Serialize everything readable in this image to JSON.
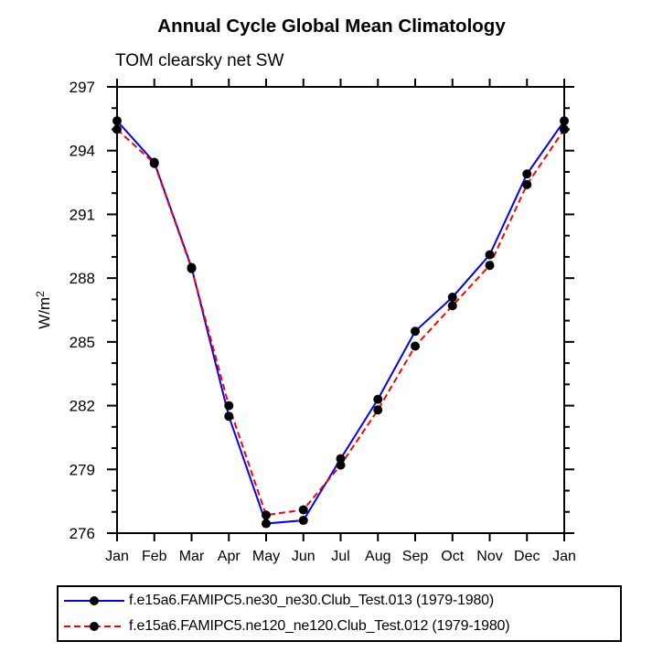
{
  "chart_data": {
    "type": "line",
    "title": "Annual Cycle Global Mean Climatology",
    "subtitle": "TOM clearsky net SW",
    "ylabel": "W/m²",
    "ylabel_base": "W/m",
    "ylabel_exponent": "2",
    "categories": [
      "Jan",
      "Feb",
      "Mar",
      "Apr",
      "May",
      "Jun",
      "Jul",
      "Aug",
      "Sep",
      "Oct",
      "Nov",
      "Dec",
      "Jan"
    ],
    "ylim": [
      276,
      297
    ],
    "ytick_interval_major": 3,
    "ytick_interval_minor": 1,
    "ytick_labels": [
      "276",
      "279",
      "282",
      "285",
      "288",
      "291",
      "294",
      "297"
    ],
    "grid": false,
    "legend_position": "bottom",
    "series": [
      {
        "name": "f.e15a6.FAMIPC5.ne30_ne30.Club_Test.013 (1979-1980)",
        "color": "#0000ff",
        "line_style": "solid",
        "marker": "filled-circle",
        "marker_color": "#000000",
        "values": [
          295.4,
          293.45,
          288.5,
          281.5,
          276.45,
          276.6,
          279.5,
          282.3,
          285.5,
          287.1,
          289.1,
          292.9,
          295.4
        ]
      },
      {
        "name": "f.e15a6.FAMIPC5.ne120_ne120.Club_Test.012 (1979-1980)",
        "color": "#ff0000",
        "line_style": "dashed",
        "marker": "filled-circle",
        "marker_color": "#000000",
        "values": [
          295.0,
          293.4,
          288.45,
          282.0,
          276.85,
          277.1,
          279.2,
          281.8,
          284.8,
          286.7,
          288.6,
          292.4,
          295.0
        ]
      }
    ]
  }
}
